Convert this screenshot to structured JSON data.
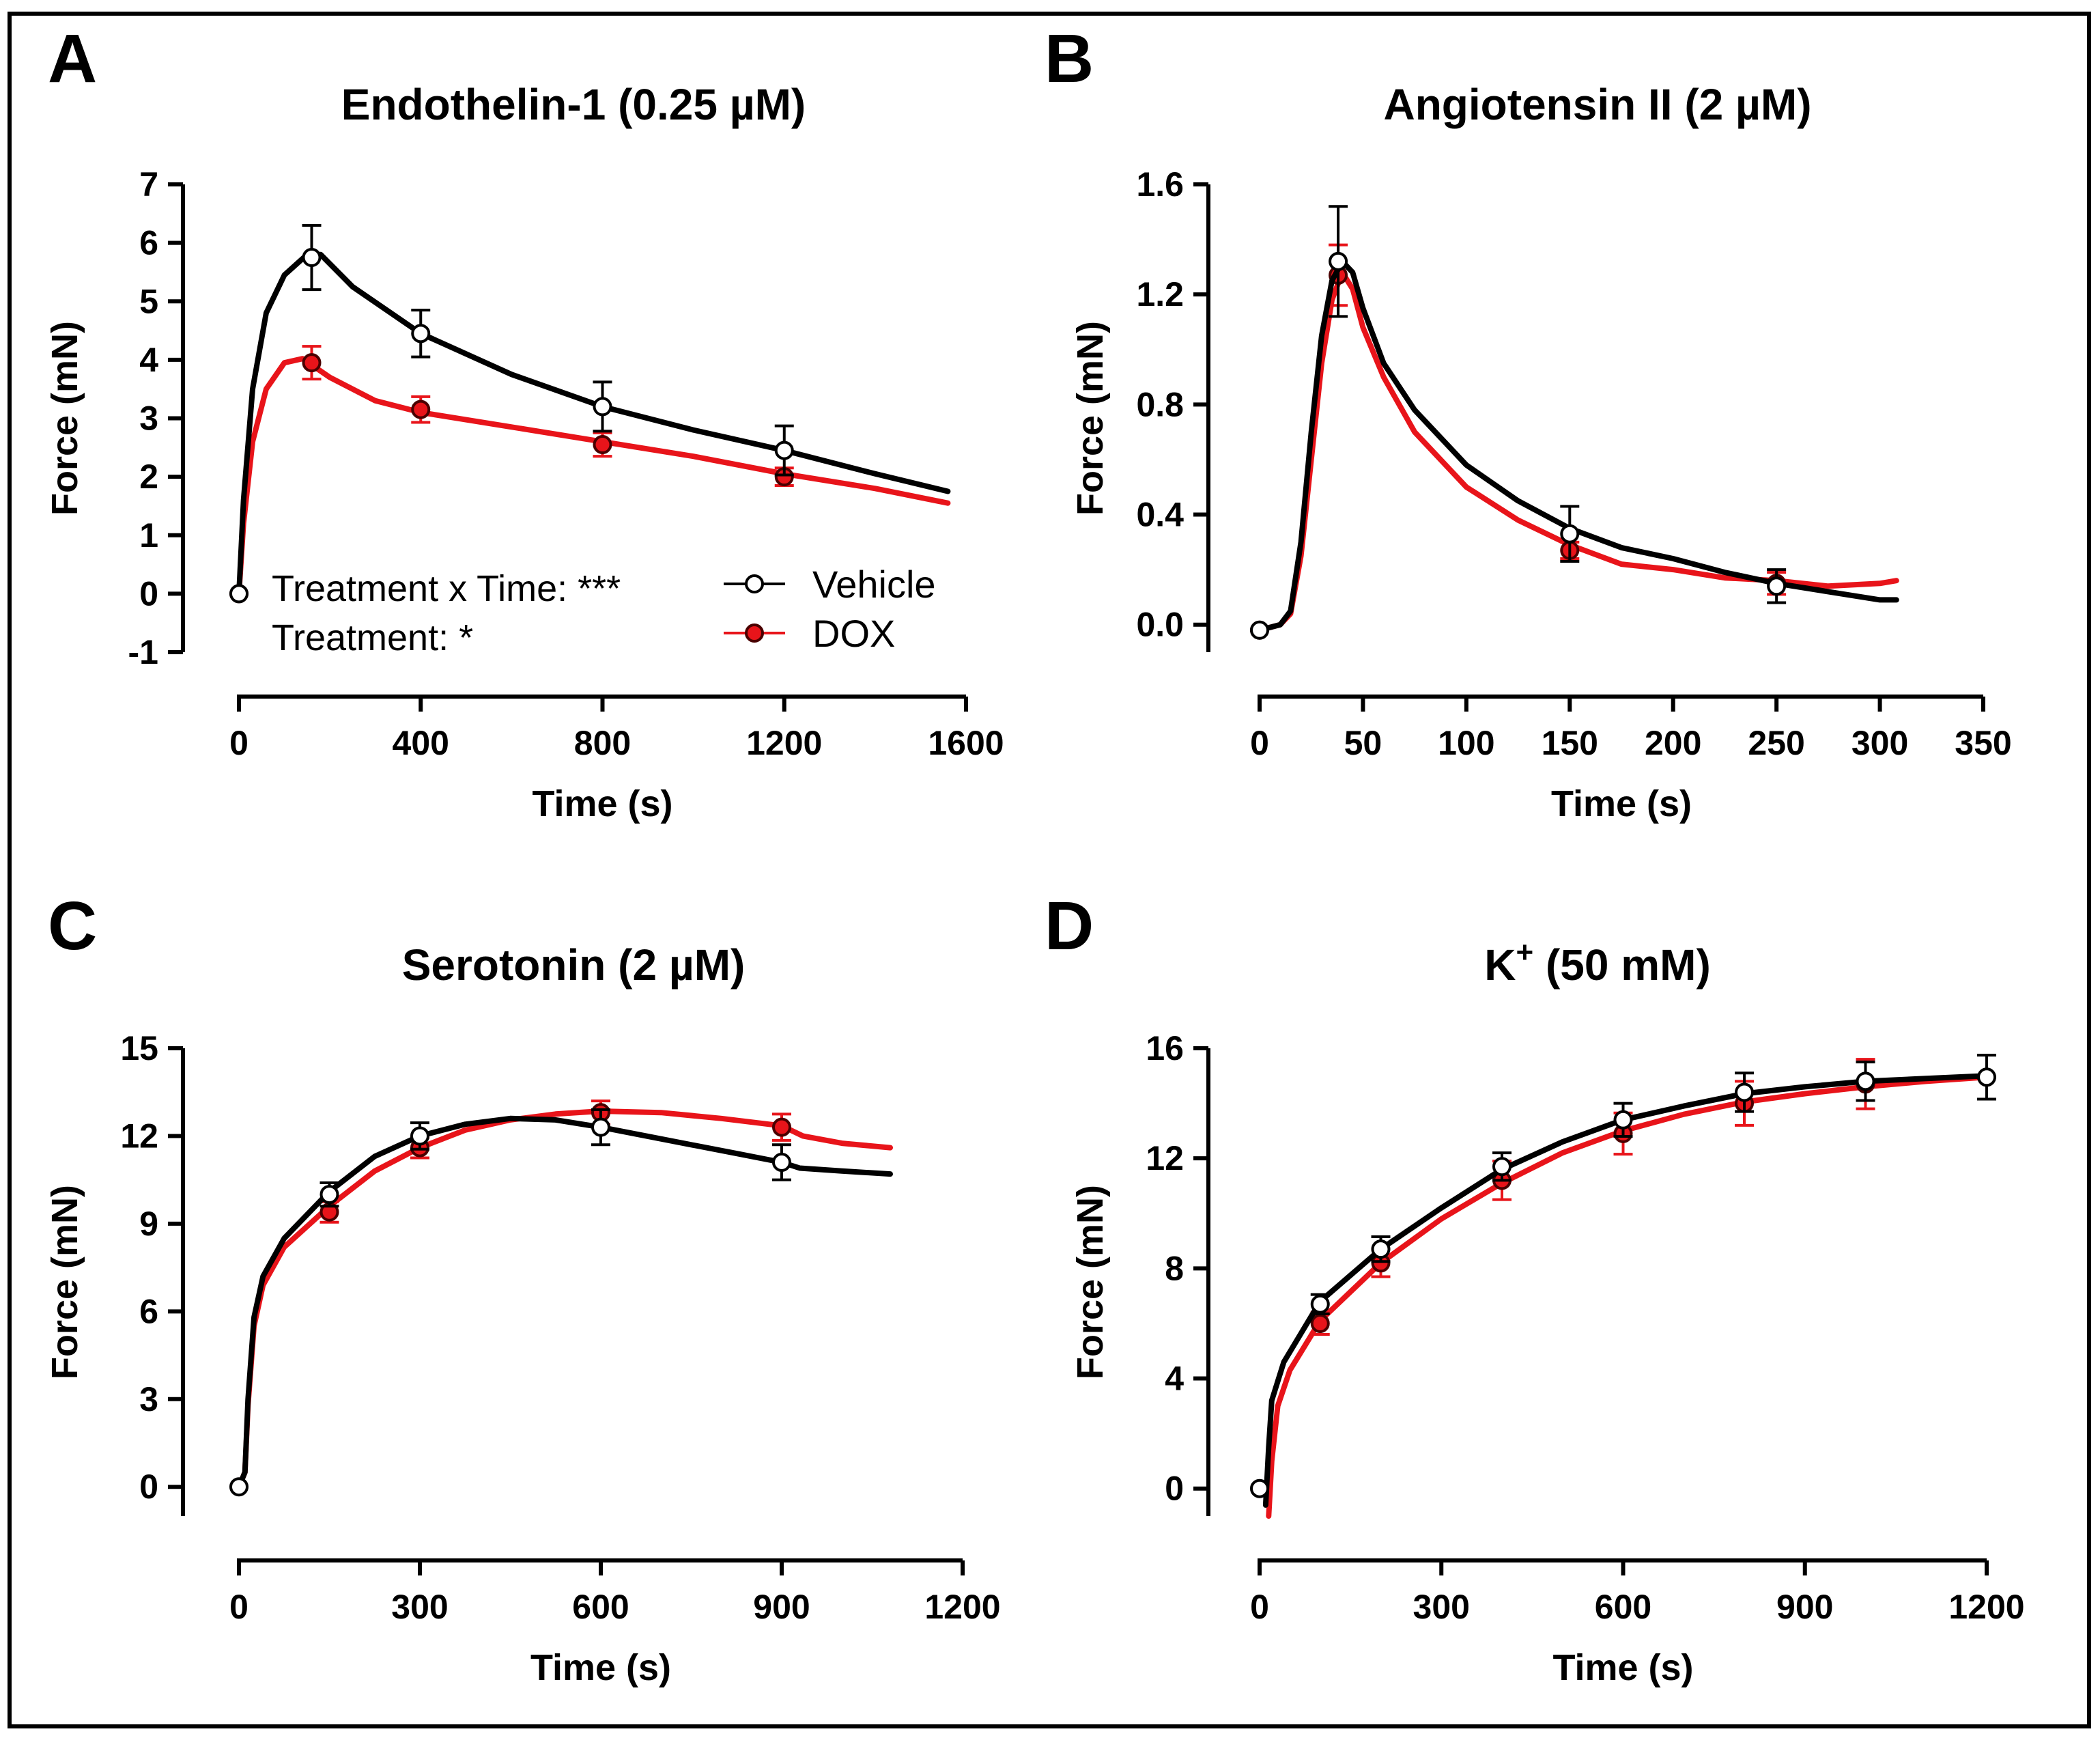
{
  "colors": {
    "vehicle": "#000000",
    "dox": "#e8141a",
    "vehicle_fill": "#ffffff",
    "dox_fill": "#e8141a"
  },
  "chart_data": [
    {
      "id": "A",
      "letter": "A",
      "type": "line",
      "title": "Endothelin-1 (0.25 µM)",
      "xlabel": "Time (s)",
      "ylabel": "Force (mN)",
      "xlim": [
        0,
        1600
      ],
      "ylim": [
        -1,
        7
      ],
      "xticks": [
        0,
        400,
        800,
        1200,
        1600
      ],
      "xticklabels": [
        "0",
        "400",
        "800",
        "1200",
        "1600"
      ],
      "yticks": [
        -1,
        0,
        1,
        2,
        3,
        4,
        5,
        6,
        7
      ],
      "yticklabels": [
        "-1",
        "0",
        "1",
        "2",
        "3",
        "4",
        "5",
        "6",
        "7"
      ],
      "legend": {
        "position": "bottom-center",
        "entries": [
          "Vehicle",
          "DOX"
        ]
      },
      "annotations": [
        "Treatment x Time: ***",
        "Treatment: *"
      ],
      "series": [
        {
          "name": "Vehicle",
          "curve": [
            [
              0,
              0
            ],
            [
              10,
              1.6
            ],
            [
              30,
              3.5
            ],
            [
              60,
              4.8
            ],
            [
              100,
              5.45
            ],
            [
              150,
              5.8
            ],
            [
              180,
              5.8
            ],
            [
              250,
              5.25
            ],
            [
              400,
              4.45
            ],
            [
              600,
              3.75
            ],
            [
              800,
              3.2
            ],
            [
              1000,
              2.8
            ],
            [
              1200,
              2.45
            ],
            [
              1400,
              2.05
            ],
            [
              1560,
              1.75
            ]
          ],
          "points": [
            {
              "x": 0,
              "y": 0,
              "err": 0
            },
            {
              "x": 160,
              "y": 5.75,
              "err": 0.55
            },
            {
              "x": 400,
              "y": 4.45,
              "err": 0.4
            },
            {
              "x": 800,
              "y": 3.2,
              "err": 0.42
            },
            {
              "x": 1200,
              "y": 2.45,
              "err": 0.42
            }
          ]
        },
        {
          "name": "DOX",
          "curve": [
            [
              0,
              0
            ],
            [
              10,
              1.2
            ],
            [
              30,
              2.6
            ],
            [
              60,
              3.5
            ],
            [
              100,
              3.95
            ],
            [
              140,
              4.02
            ],
            [
              200,
              3.7
            ],
            [
              300,
              3.3
            ],
            [
              400,
              3.1
            ],
            [
              600,
              2.85
            ],
            [
              800,
              2.6
            ],
            [
              1000,
              2.35
            ],
            [
              1200,
              2.05
            ],
            [
              1400,
              1.8
            ],
            [
              1560,
              1.55
            ]
          ],
          "points": [
            {
              "x": 0,
              "y": 0,
              "err": 0
            },
            {
              "x": 160,
              "y": 3.95,
              "err": 0.28
            },
            {
              "x": 400,
              "y": 3.15,
              "err": 0.22
            },
            {
              "x": 800,
              "y": 2.55,
              "err": 0.2
            },
            {
              "x": 1200,
              "y": 2.0,
              "err": 0.15
            }
          ]
        }
      ]
    },
    {
      "id": "B",
      "letter": "B",
      "type": "line",
      "title": "Angiotensin II (2 µM)",
      "xlabel": "Time (s)",
      "ylabel": "Force (mN)",
      "xlim": [
        0,
        350
      ],
      "ylim": [
        -0.1,
        1.6
      ],
      "xticks": [
        0,
        50,
        100,
        150,
        200,
        250,
        300,
        350
      ],
      "xticklabels": [
        "0",
        "50",
        "100",
        "150",
        "200",
        "250",
        "300",
        "350"
      ],
      "yticks": [
        0,
        0.4,
        0.8,
        1.2,
        1.6
      ],
      "yticklabels": [
        "0.0",
        "0.4",
        "0.8",
        "1.2",
        "1.6"
      ],
      "series": [
        {
          "name": "Vehicle",
          "curve": [
            [
              0,
              -0.02
            ],
            [
              10,
              0.0
            ],
            [
              15,
              0.05
            ],
            [
              20,
              0.3
            ],
            [
              25,
              0.7
            ],
            [
              30,
              1.05
            ],
            [
              35,
              1.25
            ],
            [
              40,
              1.32
            ],
            [
              45,
              1.28
            ],
            [
              50,
              1.15
            ],
            [
              60,
              0.95
            ],
            [
              75,
              0.78
            ],
            [
              100,
              0.58
            ],
            [
              125,
              0.45
            ],
            [
              150,
              0.35
            ],
            [
              175,
              0.28
            ],
            [
              200,
              0.24
            ],
            [
              225,
              0.19
            ],
            [
              250,
              0.15
            ],
            [
              275,
              0.12
            ],
            [
              300,
              0.09
            ],
            [
              308,
              0.09
            ]
          ],
          "points": [
            {
              "x": 0,
              "y": -0.02,
              "err": 0
            },
            {
              "x": 38,
              "y": 1.32,
              "err": 0.2
            },
            {
              "x": 150,
              "y": 0.33,
              "err": 0.1
            },
            {
              "x": 250,
              "y": 0.14,
              "err": 0.06
            }
          ]
        },
        {
          "name": "DOX",
          "curve": [
            [
              0,
              -0.02
            ],
            [
              10,
              0.0
            ],
            [
              15,
              0.04
            ],
            [
              20,
              0.25
            ],
            [
              25,
              0.6
            ],
            [
              30,
              0.95
            ],
            [
              35,
              1.18
            ],
            [
              40,
              1.28
            ],
            [
              45,
              1.22
            ],
            [
              50,
              1.08
            ],
            [
              60,
              0.9
            ],
            [
              75,
              0.7
            ],
            [
              100,
              0.5
            ],
            [
              125,
              0.38
            ],
            [
              150,
              0.29
            ],
            [
              175,
              0.22
            ],
            [
              200,
              0.2
            ],
            [
              225,
              0.17
            ],
            [
              250,
              0.16
            ],
            [
              275,
              0.14
            ],
            [
              300,
              0.15
            ],
            [
              308,
              0.16
            ]
          ],
          "points": [
            {
              "x": 0,
              "y": -0.02,
              "err": 0
            },
            {
              "x": 38,
              "y": 1.27,
              "err": 0.11
            },
            {
              "x": 150,
              "y": 0.27,
              "err": 0.03
            },
            {
              "x": 250,
              "y": 0.15,
              "err": 0.04
            }
          ]
        }
      ]
    },
    {
      "id": "C",
      "letter": "C",
      "type": "line",
      "title": "Serotonin (2 µM)",
      "xlabel": "Time (s)",
      "ylabel": "Force (mN)",
      "xlim": [
        0,
        1200
      ],
      "ylim": [
        -1,
        15
      ],
      "xticks": [
        0,
        300,
        600,
        900,
        1200
      ],
      "xticklabels": [
        "0",
        "300",
        "600",
        "900",
        "1200"
      ],
      "yticks": [
        0,
        3,
        6,
        9,
        12,
        15
      ],
      "yticklabels": [
        "0",
        "3",
        "6",
        "9",
        "12",
        "15"
      ],
      "series": [
        {
          "name": "Vehicle",
          "curve": [
            [
              0,
              0
            ],
            [
              10,
              0.5
            ],
            [
              15,
              3
            ],
            [
              25,
              5.8
            ],
            [
              40,
              7.2
            ],
            [
              75,
              8.5
            ],
            [
              150,
              10.1
            ],
            [
              225,
              11.3
            ],
            [
              300,
              12.0
            ],
            [
              375,
              12.4
            ],
            [
              450,
              12.6
            ],
            [
              525,
              12.55
            ],
            [
              600,
              12.3
            ],
            [
              675,
              12.0
            ],
            [
              750,
              11.7
            ],
            [
              825,
              11.4
            ],
            [
              900,
              11.1
            ],
            [
              930,
              10.9
            ],
            [
              1000,
              10.8
            ],
            [
              1080,
              10.7
            ]
          ],
          "points": [
            {
              "x": 0,
              "y": 0,
              "err": 0
            },
            {
              "x": 150,
              "y": 10.0,
              "err": 0.4
            },
            {
              "x": 300,
              "y": 12.0,
              "err": 0.45
            },
            {
              "x": 600,
              "y": 12.3,
              "err": 0.6
            },
            {
              "x": 900,
              "y": 11.1,
              "err": 0.6
            }
          ]
        },
        {
          "name": "DOX",
          "curve": [
            [
              0,
              0
            ],
            [
              10,
              0.5
            ],
            [
              15,
              2.8
            ],
            [
              25,
              5.5
            ],
            [
              40,
              6.9
            ],
            [
              75,
              8.2
            ],
            [
              150,
              9.6
            ],
            [
              225,
              10.8
            ],
            [
              300,
              11.6
            ],
            [
              375,
              12.2
            ],
            [
              450,
              12.55
            ],
            [
              525,
              12.75
            ],
            [
              600,
              12.85
            ],
            [
              700,
              12.8
            ],
            [
              800,
              12.6
            ],
            [
              900,
              12.35
            ],
            [
              935,
              12.0
            ],
            [
              1000,
              11.75
            ],
            [
              1080,
              11.6
            ]
          ],
          "points": [
            {
              "x": 150,
              "y": 9.4,
              "err": 0.35
            },
            {
              "x": 300,
              "y": 11.6,
              "err": 0.35
            },
            {
              "x": 600,
              "y": 12.8,
              "err": 0.4
            },
            {
              "x": 900,
              "y": 12.3,
              "err": 0.45
            }
          ]
        }
      ]
    },
    {
      "id": "D",
      "letter": "D",
      "type": "line",
      "title": "K",
      "title_sup": "+",
      "title_rest": " (50 mM)",
      "xlabel": "Time (s)",
      "ylabel": "Force (mN)",
      "xlim": [
        0,
        1200
      ],
      "ylim": [
        -1,
        16
      ],
      "xticks": [
        0,
        300,
        600,
        900,
        1200
      ],
      "xticklabels": [
        "0",
        "300",
        "600",
        "900",
        "1200"
      ],
      "yticks": [
        0,
        4,
        8,
        12,
        16
      ],
      "yticklabels": [
        "0",
        "4",
        "8",
        "12",
        "16"
      ],
      "series": [
        {
          "name": "Vehicle",
          "curve": [
            [
              10,
              -0.6
            ],
            [
              15,
              1.5
            ],
            [
              20,
              3.2
            ],
            [
              40,
              4.6
            ],
            [
              100,
              6.8
            ],
            [
              200,
              8.7
            ],
            [
              300,
              10.2
            ],
            [
              400,
              11.6
            ],
            [
              500,
              12.6
            ],
            [
              600,
              13.4
            ],
            [
              700,
              13.9
            ],
            [
              800,
              14.35
            ],
            [
              900,
              14.6
            ],
            [
              1000,
              14.8
            ],
            [
              1100,
              14.9
            ],
            [
              1200,
              15.0
            ]
          ],
          "points": [
            {
              "x": 0,
              "y": 0,
              "err": 0
            },
            {
              "x": 100,
              "y": 6.7,
              "err": 0.35
            },
            {
              "x": 200,
              "y": 8.7,
              "err": 0.45
            },
            {
              "x": 400,
              "y": 11.7,
              "err": 0.5
            },
            {
              "x": 600,
              "y": 13.4,
              "err": 0.6
            },
            {
              "x": 800,
              "y": 14.4,
              "err": 0.7
            },
            {
              "x": 1000,
              "y": 14.8,
              "err": 0.7
            },
            {
              "x": 1200,
              "y": 14.95,
              "err": 0.8
            }
          ]
        },
        {
          "name": "DOX",
          "curve": [
            [
              15,
              -1.0
            ],
            [
              20,
              1.0
            ],
            [
              30,
              3.0
            ],
            [
              50,
              4.3
            ],
            [
              100,
              6.1
            ],
            [
              200,
              8.2
            ],
            [
              300,
              9.8
            ],
            [
              400,
              11.1
            ],
            [
              500,
              12.2
            ],
            [
              600,
              13.0
            ],
            [
              700,
              13.6
            ],
            [
              800,
              14.05
            ],
            [
              900,
              14.35
            ],
            [
              1000,
              14.6
            ],
            [
              1100,
              14.8
            ],
            [
              1200,
              14.95
            ]
          ],
          "points": [
            {
              "x": 100,
              "y": 6.0,
              "err": 0.4
            },
            {
              "x": 200,
              "y": 8.2,
              "err": 0.5
            },
            {
              "x": 400,
              "y": 11.2,
              "err": 0.7
            },
            {
              "x": 600,
              "y": 12.9,
              "err": 0.75
            },
            {
              "x": 800,
              "y": 14.0,
              "err": 0.8
            },
            {
              "x": 1000,
              "y": 14.7,
              "err": 0.9
            }
          ]
        }
      ]
    }
  ]
}
